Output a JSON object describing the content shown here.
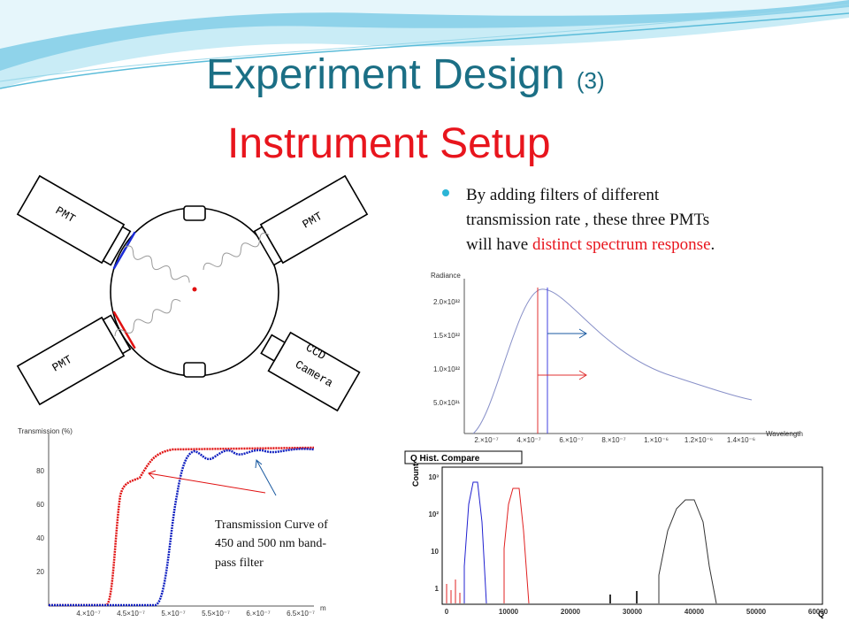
{
  "header": {
    "title": "Experiment Design",
    "number": "(3)",
    "subtitle": "Instrument Setup"
  },
  "bullet": {
    "text": "By adding filters of different transmission  rate , these three PMTs will have",
    "highlight": "distinct spectrum response",
    "end": "."
  },
  "diagram": {
    "pmt_labels": [
      "PMT",
      "PMT",
      "PMT"
    ],
    "camera_lines": [
      "CCD",
      "Camera"
    ]
  },
  "radiance_plot": {
    "y_label": "Radiance",
    "x_label": "Wavelength",
    "yticks": [
      "2.0×10³²",
      "1.5×10³²",
      "1.0×10³²",
      "5.0×10³¹"
    ],
    "xticks": [
      "2.×10⁻⁷",
      "4.×10⁻⁷",
      "6.×10⁻⁷",
      "8.×10⁻⁷",
      "1.×10⁻⁶",
      "1.2×10⁻⁶",
      "1.4×10⁻⁶"
    ]
  },
  "transmission_plot": {
    "y_label": "Transmission (%)",
    "yticks": [
      80,
      60,
      40,
      20
    ],
    "xticks": [
      "4.×10⁻⁷",
      "4.5×10⁻⁷",
      "5.×10⁻⁷",
      "5.5×10⁻⁷",
      "6.×10⁻⁷",
      "6.5×10⁻⁷"
    ],
    "x_unit": "m",
    "caption": [
      "Transmission Curve of",
      "450 and 500 nm band-",
      "pass filter"
    ]
  },
  "q_hist": {
    "title": "Q Hist. Compare",
    "y_label": "Count",
    "x_label": "Q",
    "yticks": [
      "10³",
      "10²",
      "10",
      "1"
    ],
    "xticks": [
      0,
      10000,
      20000,
      30000,
      40000,
      50000,
      60000
    ]
  }
}
